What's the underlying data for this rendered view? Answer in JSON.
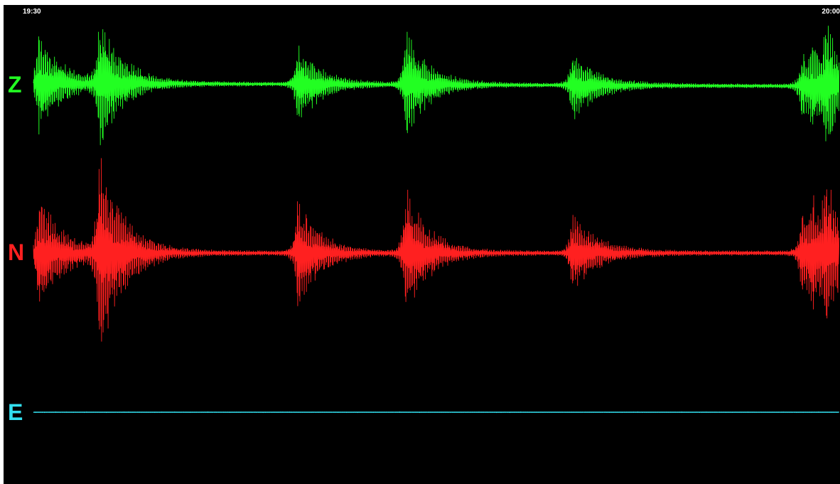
{
  "time_axis": {
    "start_label": "19:30",
    "end_label": "20:00"
  },
  "chart_data": {
    "type": "line",
    "title": "",
    "x_range": [
      "19:30",
      "20:00"
    ],
    "tick_labels": [
      "19:30",
      "20:00"
    ],
    "grid": false,
    "legend": "none",
    "background": "#000000",
    "events_minutes": [
      0.2,
      2.5,
      10.0,
      14.1,
      20.4,
      29.1,
      29.5,
      30.0
    ],
    "series": [
      {
        "name": "Z",
        "color": "#22ff22",
        "noise": 0.07,
        "events": [
          {
            "t": 0.2,
            "amp": 1.55,
            "decay": 0.9
          },
          {
            "t": 2.5,
            "amp": 1.9,
            "decay": 0.9
          },
          {
            "t": 10.0,
            "amp": 1.25,
            "decay": 0.85
          },
          {
            "t": 14.1,
            "amp": 1.7,
            "decay": 0.85
          },
          {
            "t": 20.4,
            "amp": 1.05,
            "decay": 0.95
          },
          {
            "t": 29.1,
            "amp": 1.05,
            "decay": 0.5
          },
          {
            "t": 29.5,
            "amp": 0.95,
            "decay": 0.45
          },
          {
            "t": 30.0,
            "amp": 1.6,
            "decay": 0.65
          }
        ]
      },
      {
        "name": "N",
        "color": "#ff2020",
        "noise": 0.06,
        "events": [
          {
            "t": 0.2,
            "amp": 1.4,
            "decay": 0.9
          },
          {
            "t": 2.5,
            "amp": 2.4,
            "decay": 0.9
          },
          {
            "t": 10.0,
            "amp": 1.3,
            "decay": 0.85
          },
          {
            "t": 14.1,
            "amp": 1.6,
            "decay": 0.85
          },
          {
            "t": 20.4,
            "amp": 0.95,
            "decay": 0.95
          },
          {
            "t": 29.1,
            "amp": 1.1,
            "decay": 0.5
          },
          {
            "t": 29.5,
            "amp": 1.0,
            "decay": 0.45
          },
          {
            "t": 30.0,
            "amp": 1.45,
            "decay": 0.65
          }
        ]
      },
      {
        "name": "E",
        "color": "#33e0f0",
        "noise": 0.004,
        "events": []
      }
    ]
  }
}
